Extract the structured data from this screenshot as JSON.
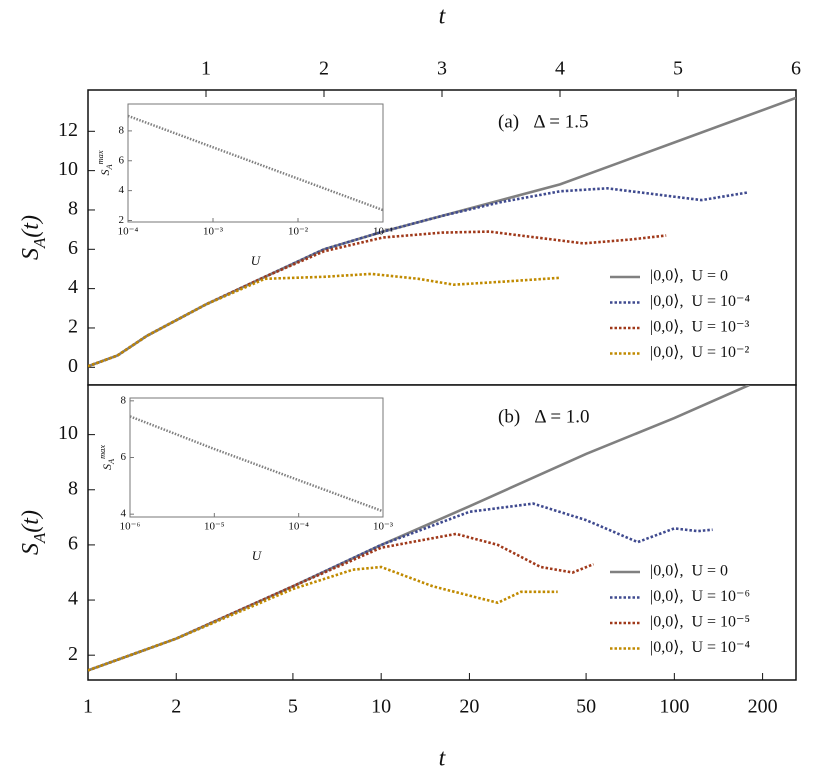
{
  "chart_data": [
    {
      "type": "line",
      "xlabel": "t",
      "ylabel": "S_A(t)",
      "annotation": "(a)   Δ = 1.5",
      "xlim": [
        0,
        6
      ],
      "xticks": [
        1,
        2,
        3,
        4,
        5,
        6
      ],
      "ylim": [
        -0.9,
        14.1
      ],
      "yticks": [
        0,
        2,
        4,
        6,
        8,
        10,
        12
      ],
      "legend": "lower right",
      "series": [
        {
          "name": "|0,0⟩,  U = 0",
          "color": "#808080",
          "style": "solid",
          "x": [
            0,
            0.25,
            0.5,
            1,
            1.5,
            2,
            2.5,
            3,
            3.5,
            4,
            4.5,
            5,
            5.5,
            6
          ],
          "values": [
            0.05,
            0.6,
            1.6,
            3.2,
            4.6,
            6.0,
            6.9,
            7.7,
            8.5,
            9.3,
            10.4,
            11.5,
            12.6,
            13.7
          ]
        },
        {
          "name": "|0,0⟩,  U = 10⁻⁴",
          "color": "#3f4a8f",
          "style": "dotted",
          "x": [
            0,
            0.25,
            0.5,
            1,
            1.5,
            2,
            2.5,
            3,
            3.5,
            4,
            4.4,
            4.8,
            5.2,
            5.6
          ],
          "values": [
            0.05,
            0.6,
            1.6,
            3.2,
            4.6,
            6.0,
            6.9,
            7.7,
            8.4,
            8.95,
            9.1,
            8.8,
            8.5,
            8.9
          ]
        },
        {
          "name": "|0,0⟩,  U = 10⁻³",
          "color": "#a0391a",
          "style": "dotted",
          "x": [
            0,
            0.25,
            0.5,
            1,
            1.5,
            2,
            2.5,
            3,
            3.4,
            3.8,
            4.2,
            4.6,
            4.9
          ],
          "values": [
            0.05,
            0.6,
            1.6,
            3.2,
            4.6,
            5.9,
            6.6,
            6.85,
            6.9,
            6.6,
            6.3,
            6.5,
            6.7
          ]
        },
        {
          "name": "|0,0⟩,  U = 10⁻²",
          "color": "#c08a00",
          "style": "dotted",
          "x": [
            0,
            0.25,
            0.5,
            1,
            1.5,
            2,
            2.4,
            2.8,
            3.1,
            3.5,
            4.0
          ],
          "values": [
            0.05,
            0.6,
            1.6,
            3.2,
            4.5,
            4.6,
            4.75,
            4.5,
            4.2,
            4.35,
            4.55
          ]
        }
      ]
    },
    {
      "type": "line",
      "xlabel": "U",
      "ylabel": "S_A^max",
      "xlog": true,
      "xlim": [
        0.0001,
        0.1
      ],
      "xticks": [
        {
          "value": 0.0001,
          "label": "10⁻⁴"
        },
        {
          "value": 0.001,
          "label": "10⁻³"
        },
        {
          "value": 0.01,
          "label": "10⁻²"
        },
        {
          "value": 0.1,
          "label": "10⁻¹"
        }
      ],
      "ylim": [
        1.9,
        9.8
      ],
      "yticks": [
        2,
        4,
        6,
        8
      ],
      "series": [
        {
          "color": "#808080",
          "style": "dotted",
          "x": [
            0.0001,
            0.001,
            0.01,
            0.1
          ],
          "values": [
            9.0,
            6.9,
            4.8,
            2.7
          ]
        }
      ]
    },
    {
      "type": "line",
      "xlabel": "t",
      "ylabel": "S_A(t)",
      "annotation": "(b)   Δ = 1.0",
      "xlog": true,
      "xlim": [
        1,
        260
      ],
      "xticks": [
        1,
        2,
        5,
        10,
        20,
        50,
        100,
        200
      ],
      "ylim": [
        1.1,
        11.8
      ],
      "yticks": [
        2,
        4,
        6,
        8,
        10
      ],
      "legend": "lower right",
      "series": [
        {
          "name": "|0,0⟩,  U = 0",
          "color": "#808080",
          "style": "solid",
          "x": [
            1,
            2,
            5,
            10,
            20,
            50,
            100,
            180
          ],
          "values": [
            1.45,
            2.6,
            4.5,
            6.0,
            7.4,
            9.3,
            10.6,
            11.8
          ]
        },
        {
          "name": "|0,0⟩,  U = 10⁻⁶",
          "color": "#3f4a8f",
          "style": "dotted",
          "x": [
            1,
            2,
            5,
            10,
            20,
            33,
            50,
            75,
            100,
            120,
            135
          ],
          "values": [
            1.45,
            2.6,
            4.5,
            6.0,
            7.2,
            7.5,
            6.9,
            6.1,
            6.6,
            6.5,
            6.55
          ]
        },
        {
          "name": "|0,0⟩,  U = 10⁻⁵",
          "color": "#a0391a",
          "style": "dotted",
          "x": [
            1,
            2,
            5,
            10,
            18,
            25,
            35,
            45,
            53
          ],
          "values": [
            1.45,
            2.6,
            4.5,
            5.9,
            6.4,
            6.0,
            5.2,
            5.0,
            5.3
          ]
        },
        {
          "name": "|0,0⟩,  U = 10⁻⁴",
          "color": "#c08a00",
          "style": "dotted",
          "x": [
            1,
            2,
            5,
            8,
            10,
            15,
            25,
            30,
            40
          ],
          "values": [
            1.45,
            2.6,
            4.4,
            5.1,
            5.2,
            4.5,
            3.9,
            4.3,
            4.3
          ]
        }
      ]
    },
    {
      "type": "line",
      "xlabel": "U",
      "ylabel": "S_A^max",
      "xlog": true,
      "xlim": [
        1e-06,
        0.001
      ],
      "xticks": [
        {
          "value": 1e-06,
          "label": "10⁻⁶"
        },
        {
          "value": 1e-05,
          "label": "10⁻⁵"
        },
        {
          "value": 0.0001,
          "label": "10⁻⁴"
        },
        {
          "value": 0.001,
          "label": "10⁻³"
        }
      ],
      "ylim": [
        3.9,
        8.1
      ],
      "yticks": [
        4,
        6,
        8
      ],
      "series": [
        {
          "color": "#808080",
          "style": "dotted",
          "x": [
            1e-06,
            1e-05,
            0.0001,
            0.001
          ],
          "values": [
            7.45,
            6.3,
            5.2,
            4.1
          ]
        }
      ]
    }
  ]
}
